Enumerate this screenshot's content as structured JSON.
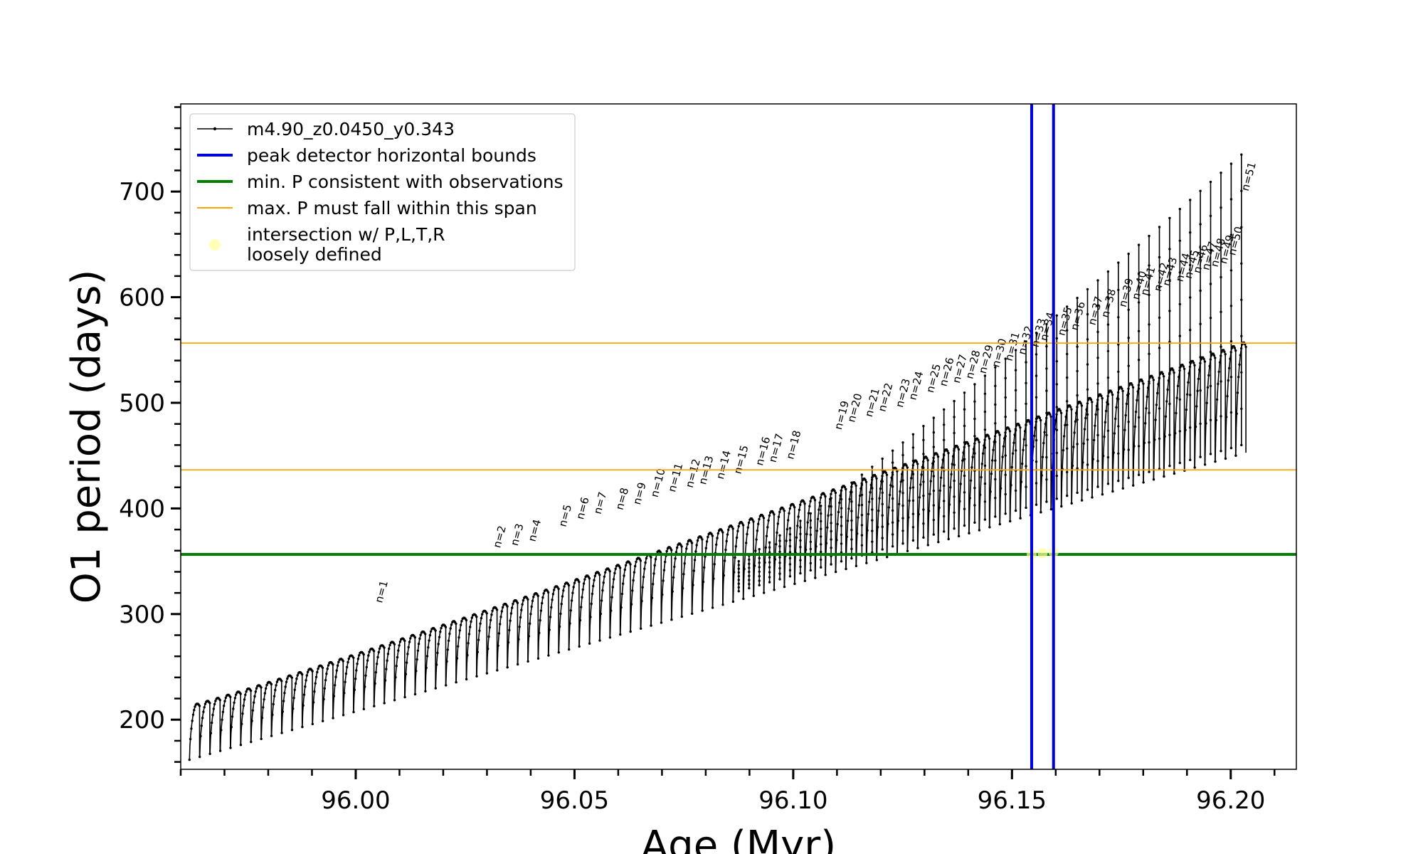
{
  "chart_data": {
    "type": "line",
    "xlabel": "Age (Myr)",
    "ylabel": "O1 period (days)",
    "xlim": [
      95.96,
      96.215
    ],
    "ylim": [
      153,
      783
    ],
    "x_ticks": [
      96.0,
      96.05,
      96.1,
      96.15,
      96.2
    ],
    "x_tick_labels": [
      "96.00",
      "96.05",
      "96.10",
      "96.15",
      "96.20"
    ],
    "y_ticks": [
      200,
      300,
      400,
      500,
      600,
      700
    ],
    "y_tick_labels": [
      "200",
      "300",
      "400",
      "500",
      "600",
      "700"
    ],
    "x_minor_step": 0.01,
    "y_minor_step": 20,
    "grid": false,
    "legend_position": "top-left",
    "series": [
      {
        "name": "m4.90_z0.0450_y0.343",
        "style": "line-with-dots",
        "color": "#000000",
        "pulse_count": 103,
        "age_start": 95.962,
        "age_end": 96.2035,
        "trough_start": 162,
        "trough_end": 450,
        "crest_start": 215,
        "crest_end": 557,
        "spikes_start_at_pulse": 53,
        "spike_start": 350,
        "spike_end": 735
      }
    ],
    "vertical_lines": {
      "name": "peak detector horizontal bounds",
      "color": "#0000dd",
      "x": [
        96.1545,
        96.1595
      ]
    },
    "horizontal_lines": [
      {
        "name": "min. P consistent with observations",
        "color": "#008000",
        "y": [
          356.5
        ]
      },
      {
        "name": "max. P must fall within this span",
        "color": "#ffa500",
        "y": [
          436.5,
          556.5
        ]
      }
    ],
    "intersection": {
      "name": "intersection w/ P,L,T,R",
      "name_line2": "loosely defined",
      "color": "#ffff99",
      "points": [
        [
          96.1545,
          356.5
        ],
        [
          96.157,
          357.5
        ],
        [
          96.1595,
          358.5
        ]
      ]
    },
    "n_labels": {
      "labels": [
        "n=1",
        "n=2",
        "n=3",
        "n=4",
        "n=5",
        "n=6",
        "n=7",
        "n=8",
        "n=9",
        "n=10",
        "n=11",
        "n=12",
        "n=13",
        "n=14",
        "n=15",
        "n=16",
        "n=17",
        "n=18",
        "n=19",
        "n=20",
        "n=21",
        "n=22",
        "n=23",
        "n=24",
        "n=25",
        "n=26",
        "n=27",
        "n=28",
        "n=29",
        "n=30",
        "n=31",
        "n=32",
        "n=33",
        "n=34",
        "n=35",
        "n=36",
        "n=37",
        "n=38",
        "n=39",
        "n=40",
        "n=41",
        "n=42",
        "n=43",
        "n=44",
        "n=45",
        "n=46",
        "n=47",
        "n=48",
        "n=49",
        "n=50",
        "n=51"
      ],
      "ages": [
        96.006,
        96.033,
        96.037,
        96.041,
        96.048,
        96.052,
        96.056,
        96.061,
        96.065,
        96.069,
        96.073,
        96.077,
        96.08,
        96.084,
        96.088,
        96.093,
        96.096,
        96.1,
        96.111,
        96.114,
        96.118,
        96.121,
        96.125,
        96.128,
        96.132,
        96.135,
        96.138,
        96.141,
        96.144,
        96.147,
        96.15,
        96.153,
        96.156,
        96.158,
        96.162,
        96.165,
        96.169,
        96.172,
        96.176,
        96.179,
        96.181,
        96.184,
        96.186,
        96.189,
        96.191,
        96.193,
        96.195,
        96.197,
        96.199,
        96.201,
        96.204
      ],
      "periods": [
        310,
        362,
        364,
        368,
        382,
        389,
        394,
        398,
        403,
        410,
        415,
        419,
        422,
        427,
        432,
        440,
        443,
        446,
        474,
        481,
        486,
        491,
        495,
        502,
        509,
        515,
        518,
        522,
        527,
        533,
        539,
        545,
        552,
        558,
        563,
        568,
        573,
        580,
        590,
        597,
        601,
        605,
        610,
        614,
        617,
        622,
        625,
        628,
        631,
        639,
        700
      ]
    }
  }
}
